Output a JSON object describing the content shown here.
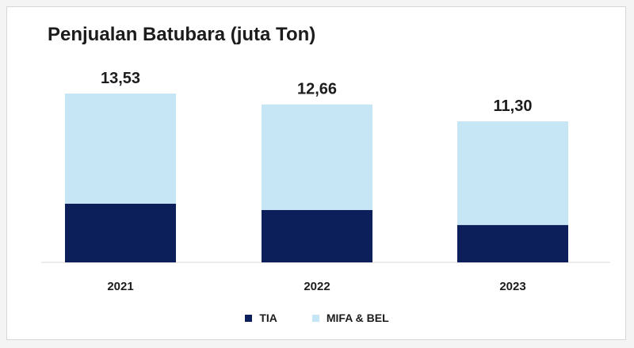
{
  "chart_data": {
    "type": "bar",
    "stacked": true,
    "title": "Penjualan Batubara (juta Ton)",
    "categories": [
      "2021",
      "2022",
      "2023"
    ],
    "totals": [
      "13,53",
      "12,66",
      "11,30"
    ],
    "series": [
      {
        "name": "TIA",
        "color": "#0d1f5a",
        "values": [
          4.7,
          4.2,
          3.0
        ]
      },
      {
        "name": "MIFA & BEL",
        "color": "#c6e6f5",
        "values": [
          8.83,
          8.46,
          8.3
        ]
      }
    ],
    "ylim": [
      0,
      13.53
    ],
    "grid": false,
    "legend_position": "bottom-center"
  }
}
